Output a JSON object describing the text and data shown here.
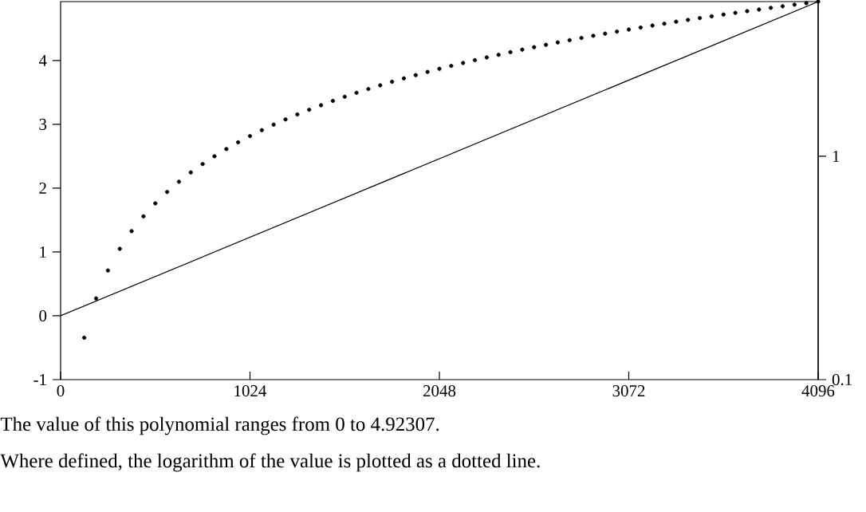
{
  "chart_data": {
    "type": "line",
    "xlim": [
      0,
      4096
    ],
    "xticks": [
      0,
      1024,
      2048,
      3072,
      4096
    ],
    "ylim": [
      -1,
      4.92307
    ],
    "yticks": [
      -1,
      0,
      1,
      2,
      3,
      4
    ],
    "y2lim": [
      0.1,
      4.92307
    ],
    "y2ticks": [
      0.1,
      1
    ],
    "log": "y2",
    "series": [
      {
        "color": "#000000",
        "marker": "none",
        "x": [
          0,
          4096
        ],
        "values": [
          0,
          4.92307
        ]
      },
      {
        "type": "scatter",
        "axis": "y2",
        "color": "#000000",
        "marker": "circle",
        "x": [
          128,
          192,
          256,
          320,
          384,
          448,
          512,
          576,
          640,
          704,
          768,
          832,
          896,
          960,
          1024,
          1088,
          1152,
          1216,
          1280,
          1344,
          1408,
          1472,
          1536,
          1600,
          1664,
          1728,
          1792,
          1856,
          1920,
          1984,
          2048,
          2112,
          2176,
          2240,
          2304,
          2368,
          2432,
          2496,
          2560,
          2624,
          2688,
          2752,
          2816,
          2880,
          2944,
          3008,
          3072,
          3136,
          3200,
          3264,
          3328,
          3392,
          3456,
          3520,
          3584,
          3648,
          3712,
          3776,
          3840,
          3904,
          3968,
          4032,
          4096
        ],
        "values": [
          0.154,
          0.231,
          0.308,
          0.385,
          0.462,
          0.538,
          0.615,
          0.692,
          0.769,
          0.846,
          0.923,
          1,
          1.077,
          1.154,
          1.231,
          1.308,
          1.385,
          1.462,
          1.538,
          1.615,
          1.692,
          1.769,
          1.846,
          1.923,
          2,
          2.077,
          2.154,
          2.231,
          2.308,
          2.385,
          2.462,
          2.538,
          2.615,
          2.692,
          2.769,
          2.846,
          2.923,
          3,
          3.077,
          3.154,
          3.231,
          3.308,
          3.385,
          3.462,
          3.538,
          3.615,
          3.692,
          3.769,
          3.846,
          3.923,
          4,
          4.077,
          4.154,
          4.231,
          4.308,
          4.385,
          4.462,
          4.538,
          4.615,
          4.692,
          4.769,
          4.846,
          4.923
        ]
      }
    ],
    "annotations": [
      "The value of this polynomial ranges from 0 to 4.92307.",
      "Where defined, the logarithm of the value is plotted as a dotted line."
    ]
  }
}
